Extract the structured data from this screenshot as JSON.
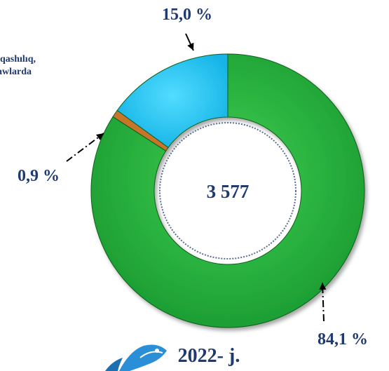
{
  "legend_fragment": {
    "line1": "qashılıq,",
    "line2": "awlarda"
  },
  "chart_data": {
    "type": "pie",
    "subtype": "donut",
    "title": "2022- j.",
    "center_label": "3 577",
    "slices": [
      {
        "label": "84,1 %",
        "value": 84.1,
        "color": "#22ad3a"
      },
      {
        "label": "0,9 %",
        "value": 0.9,
        "color": "#c8742c"
      },
      {
        "label": "15,0 %",
        "value": 15.0,
        "color": "#1ec8f5"
      }
    ]
  },
  "colors": {
    "text": "#1f3a6e",
    "green": "#22ad3a",
    "orange": "#c8742c",
    "cyan": "#1ec8f5",
    "center_border": "#5a6f95"
  },
  "icons": [
    "fish-logo-icon"
  ]
}
